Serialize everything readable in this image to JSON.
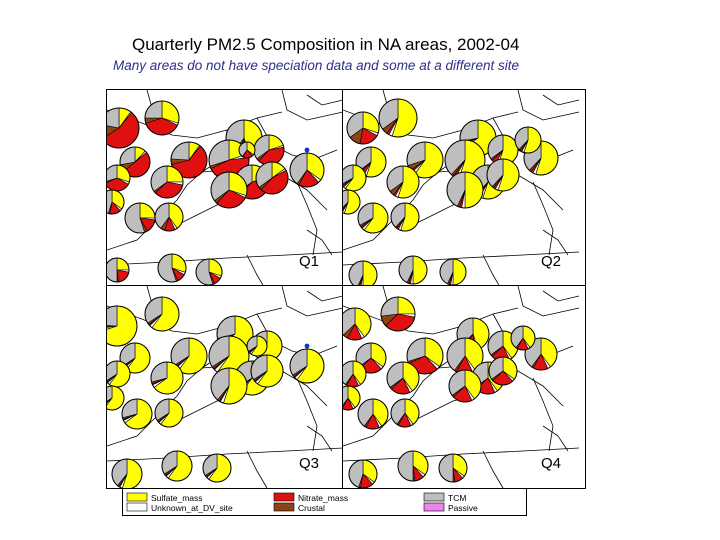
{
  "header": {
    "title": "Quarterly PM2.5 Composition in NA areas, 2002-04",
    "subtitle": "Many areas do not have speciation data and some at a different site"
  },
  "colors": {
    "Sulfate_mass": "#ffff00",
    "Unknown_at_DV_site": "#ffffff",
    "Nitrate_mass": "#e01010",
    "Crustal": "#8b4513",
    "TCM": "#bebebe",
    "Passive": "#ee82ee",
    "site_marker": "#1030d0",
    "boundary": "#000000"
  },
  "legend": [
    {
      "key": "Sulfate_mass",
      "label": "Sulfate_mass"
    },
    {
      "key": "Unknown_at_DV_site",
      "label": "Unknown_at_DV_site"
    },
    {
      "key": "Nitrate_mass",
      "label": "Nitrate_mass"
    },
    {
      "key": "Crustal",
      "label": "Crustal"
    },
    {
      "key": "TCM",
      "label": "TCM"
    },
    {
      "key": "Passive",
      "label": "Passive"
    }
  ],
  "panels": [
    {
      "label": "Q1",
      "pies": [
        {
          "v": [
            0.1,
            0.01,
            0.55,
            0.12,
            0.22,
            0.0
          ]
        },
        {
          "v": [
            0.3,
            0.02,
            0.38,
            0.05,
            0.25,
            0.0
          ]
        },
        {
          "v": [
            0.45,
            0.03,
            0.07,
            0.05,
            0.4,
            0.0
          ]
        },
        {
          "v": [
            0.2,
            0.02,
            0.4,
            0.03,
            0.35,
            0.0
          ]
        },
        {
          "v": [
            0.12,
            0.02,
            0.5,
            0.08,
            0.28,
            0.0
          ]
        },
        {
          "v": [
            0.1,
            0.01,
            0.6,
            0.05,
            0.24,
            0.0
          ]
        },
        {
          "v": [
            0.25,
            0.03,
            0.35,
            0.02,
            0.35,
            0.0
          ]
        },
        {
          "v": [
            0.3,
            0.03,
            0.35,
            0.02,
            0.3,
            0.0
          ]
        },
        {
          "v": [
            0.2,
            0.03,
            0.45,
            0.02,
            0.3,
            0.0
          ]
        },
        {
          "v": [
            0.2,
            0.02,
            0.4,
            0.03,
            0.35,
            0.0
          ]
        },
        {
          "v": [
            0.3,
            0.02,
            0.3,
            0.03,
            0.35,
            0.0
          ]
        },
        {
          "v": [
            0.15,
            0.02,
            0.45,
            0.03,
            0.35,
            0.0
          ]
        },
        {
          "v": [
            0.35,
            0.03,
            0.2,
            0.02,
            0.4,
            0.0
          ]
        },
        {
          "v": [
            0.4,
            0.03,
            0.12,
            0.05,
            0.4,
            0.0
          ]
        },
        {
          "v": [
            0.25,
            0.02,
            0.15,
            0.03,
            0.55,
            0.0
          ]
        },
        {
          "v": [
            0.35,
            0.03,
            0.15,
            0.02,
            0.45,
            0.0
          ]
        },
        {
          "v": [
            0.25,
            0.03,
            0.2,
            0.02,
            0.5,
            0.0
          ]
        },
        {
          "v": [
            0.3,
            0.03,
            0.1,
            0.02,
            0.55,
            0.0
          ]
        },
        {
          "v": [
            0.3,
            0.03,
            0.1,
            0.02,
            0.55,
            0.0
          ]
        },
        {
          "v": [
            0.35,
            0.03,
            0.2,
            0.02,
            0.4,
            0.0
          ]
        }
      ]
    },
    {
      "label": "Q2",
      "pies": [
        {
          "v": [
            0.55,
            0.03,
            0.02,
            0.05,
            0.35,
            0.0
          ]
        },
        {
          "v": [
            0.3,
            0.03,
            0.2,
            0.12,
            0.35,
            0.0
          ]
        },
        {
          "v": [
            0.65,
            0.03,
            0.02,
            0.02,
            0.28,
            0.0
          ]
        },
        {
          "v": [
            0.55,
            0.03,
            0.05,
            0.02,
            0.35,
            0.0
          ]
        },
        {
          "v": [
            0.55,
            0.03,
            0.05,
            0.02,
            0.35,
            0.0
          ]
        },
        {
          "v": [
            0.6,
            0.03,
            0.02,
            0.05,
            0.3,
            0.0
          ]
        },
        {
          "v": [
            0.55,
            0.03,
            0.02,
            0.05,
            0.35,
            0.0
          ]
        },
        {
          "v": [
            0.6,
            0.03,
            0.02,
            0.02,
            0.33,
            0.0
          ]
        },
        {
          "v": [
            0.55,
            0.03,
            0.02,
            0.02,
            0.38,
            0.0
          ]
        },
        {
          "v": [
            0.55,
            0.03,
            0.02,
            0.02,
            0.38,
            0.0
          ]
        },
        {
          "v": [
            0.5,
            0.03,
            0.02,
            0.02,
            0.43,
            0.0
          ]
        },
        {
          "v": [
            0.55,
            0.03,
            0.02,
            0.02,
            0.38,
            0.0
          ]
        },
        {
          "v": [
            0.55,
            0.03,
            0.02,
            0.02,
            0.38,
            0.0
          ]
        },
        {
          "v": [
            0.55,
            0.03,
            0.02,
            0.02,
            0.38,
            0.0
          ]
        },
        {
          "v": [
            0.6,
            0.03,
            0.02,
            0.02,
            0.33,
            0.0
          ]
        },
        {
          "v": [
            0.55,
            0.03,
            0.02,
            0.02,
            0.38,
            0.0
          ]
        },
        {
          "v": [
            0.5,
            0.03,
            0.02,
            0.02,
            0.43,
            0.0
          ]
        },
        {
          "v": [
            0.5,
            0.03,
            0.02,
            0.02,
            0.43,
            0.0
          ]
        },
        {
          "v": [
            0.5,
            0.03,
            0.02,
            0.02,
            0.43,
            0.0
          ]
        },
        {
          "v": [
            0.55,
            0.03,
            0.02,
            0.02,
            0.38,
            0.0
          ]
        }
      ]
    },
    {
      "label": "Q3",
      "pies": [
        {
          "v": [
            0.7,
            0.03,
            0.01,
            0.02,
            0.24,
            0.0
          ]
        },
        {
          "v": [
            0.6,
            0.03,
            0.01,
            0.02,
            0.34,
            0.0
          ]
        },
        {
          "v": [
            0.65,
            0.03,
            0.01,
            0.02,
            0.29,
            0.0
          ]
        },
        {
          "v": [
            0.6,
            0.03,
            0.01,
            0.02,
            0.34,
            0.0
          ]
        },
        {
          "v": [
            0.6,
            0.03,
            0.01,
            0.02,
            0.34,
            0.0
          ]
        },
        {
          "v": [
            0.6,
            0.03,
            0.01,
            0.02,
            0.34,
            0.0
          ]
        },
        {
          "v": [
            0.65,
            0.03,
            0.01,
            0.02,
            0.29,
            0.0
          ]
        },
        {
          "v": [
            0.6,
            0.03,
            0.01,
            0.02,
            0.34,
            0.0
          ]
        },
        {
          "v": [
            0.6,
            0.03,
            0.01,
            0.02,
            0.34,
            0.0
          ]
        },
        {
          "v": [
            0.6,
            0.03,
            0.01,
            0.02,
            0.34,
            0.0
          ]
        },
        {
          "v": [
            0.55,
            0.03,
            0.01,
            0.02,
            0.39,
            0.0
          ]
        },
        {
          "v": [
            0.6,
            0.03,
            0.01,
            0.02,
            0.34,
            0.0
          ]
        },
        {
          "v": [
            0.6,
            0.03,
            0.01,
            0.02,
            0.34,
            0.0
          ]
        },
        {
          "v": [
            0.6,
            0.03,
            0.01,
            0.02,
            0.34,
            0.0
          ]
        },
        {
          "v": [
            0.65,
            0.03,
            0.01,
            0.02,
            0.29,
            0.0
          ]
        },
        {
          "v": [
            0.6,
            0.03,
            0.01,
            0.02,
            0.34,
            0.0
          ]
        },
        {
          "v": [
            0.55,
            0.03,
            0.01,
            0.02,
            0.39,
            0.0
          ]
        },
        {
          "v": [
            0.6,
            0.03,
            0.01,
            0.02,
            0.34,
            0.0
          ]
        },
        {
          "v": [
            0.6,
            0.03,
            0.01,
            0.02,
            0.34,
            0.0
          ]
        },
        {
          "v": [
            0.6,
            0.03,
            0.01,
            0.02,
            0.34,
            0.0
          ]
        }
      ]
    },
    {
      "label": "Q4",
      "pies": [
        {
          "v": [
            0.4,
            0.03,
            0.15,
            0.05,
            0.37,
            0.0
          ]
        },
        {
          "v": [
            0.25,
            0.03,
            0.35,
            0.1,
            0.27,
            0.0
          ]
        },
        {
          "v": [
            0.45,
            0.03,
            0.1,
            0.05,
            0.37,
            0.0
          ]
        },
        {
          "v": [
            0.4,
            0.03,
            0.2,
            0.02,
            0.35,
            0.0
          ]
        },
        {
          "v": [
            0.35,
            0.03,
            0.25,
            0.02,
            0.35,
            0.0
          ]
        },
        {
          "v": [
            0.35,
            0.03,
            0.3,
            0.02,
            0.3,
            0.0
          ]
        },
        {
          "v": [
            0.4,
            0.03,
            0.2,
            0.02,
            0.35,
            0.0
          ]
        },
        {
          "v": [
            0.4,
            0.03,
            0.15,
            0.02,
            0.4,
            0.0
          ]
        },
        {
          "v": [
            0.4,
            0.03,
            0.15,
            0.02,
            0.4,
            0.0
          ]
        },
        {
          "v": [
            0.4,
            0.03,
            0.2,
            0.02,
            0.35,
            0.0
          ]
        },
        {
          "v": [
            0.4,
            0.03,
            0.2,
            0.02,
            0.35,
            0.0
          ]
        },
        {
          "v": [
            0.35,
            0.03,
            0.25,
            0.02,
            0.35,
            0.0
          ]
        },
        {
          "v": [
            0.4,
            0.03,
            0.15,
            0.02,
            0.4,
            0.0
          ]
        },
        {
          "v": [
            0.4,
            0.03,
            0.15,
            0.02,
            0.4,
            0.0
          ]
        },
        {
          "v": [
            0.4,
            0.03,
            0.15,
            0.02,
            0.4,
            0.0
          ]
        },
        {
          "v": [
            0.4,
            0.03,
            0.15,
            0.02,
            0.4,
            0.0
          ]
        },
        {
          "v": [
            0.35,
            0.03,
            0.15,
            0.02,
            0.45,
            0.0
          ]
        },
        {
          "v": [
            0.35,
            0.03,
            0.1,
            0.02,
            0.5,
            0.0
          ]
        },
        {
          "v": [
            0.35,
            0.03,
            0.1,
            0.02,
            0.5,
            0.0
          ]
        },
        {
          "v": [
            0.4,
            0.03,
            0.15,
            0.02,
            0.4,
            0.0
          ]
        }
      ]
    }
  ]
}
